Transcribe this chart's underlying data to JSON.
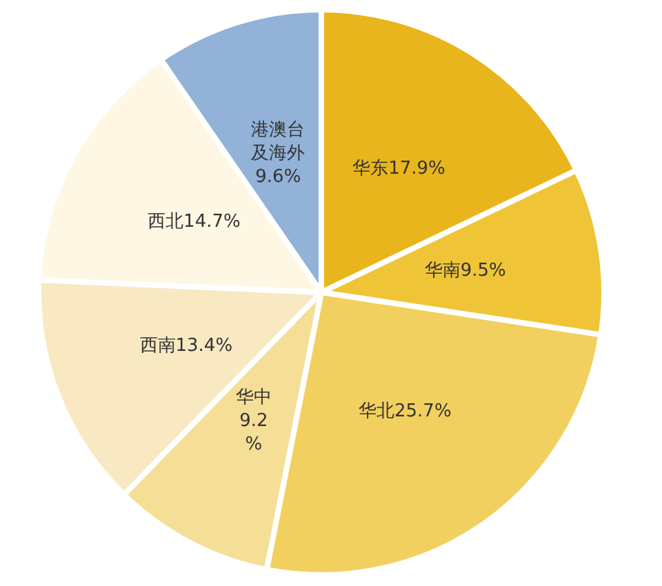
{
  "chart_data": {
    "type": "pie",
    "categories": [
      "华东",
      "华南",
      "华北",
      "华中",
      "西南",
      "西北",
      "港澳台及海外"
    ],
    "values": [
      17.9,
      9.5,
      25.7,
      9.2,
      13.4,
      14.7,
      9.6
    ],
    "value_labels": [
      "17.9%",
      "9.5%",
      "25.7%",
      "9.2%",
      "13.4%",
      "14.7%",
      "9.6%"
    ],
    "colors": [
      "#e9b51c",
      "#efc537",
      "#f2d05f",
      "#f5de96",
      "#f8e9c2",
      "#fdf7e3",
      "#92b2d7"
    ],
    "legend": false
  }
}
